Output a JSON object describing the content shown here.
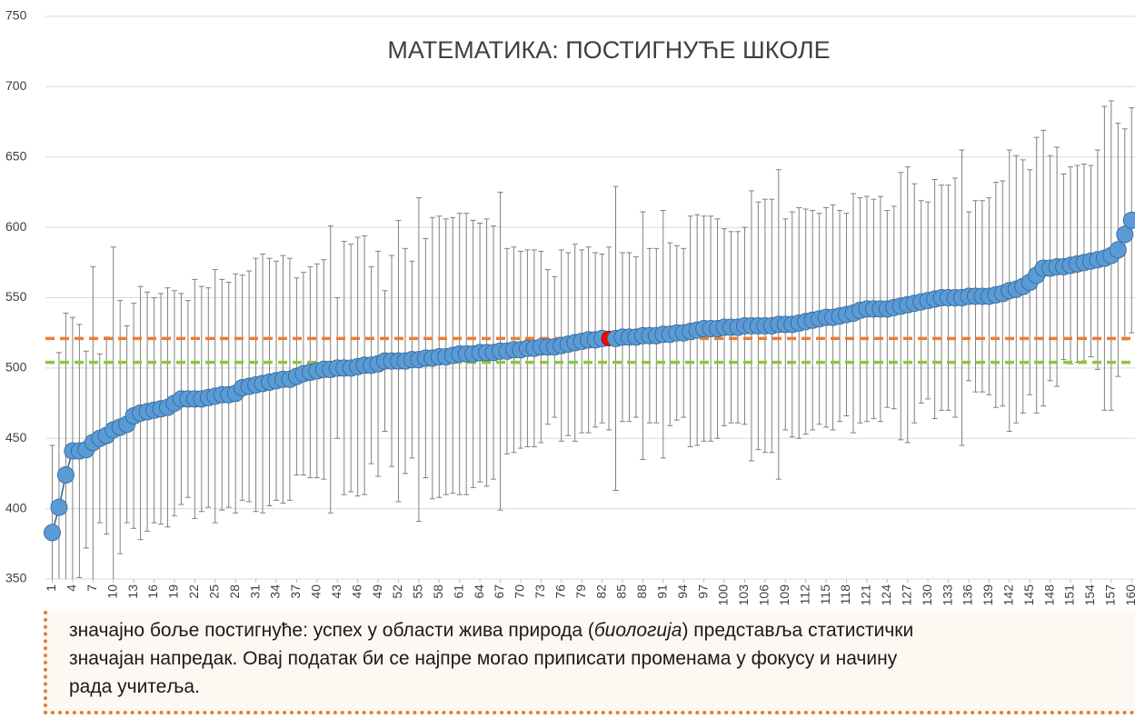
{
  "chart_data": {
    "type": "errorbar",
    "title": "МАТЕМАТИКА: ПОСТИГНУЋЕ ШКОЛЕ",
    "x": [
      1,
      2,
      3,
      4,
      5,
      6,
      7,
      8,
      9,
      10,
      11,
      12,
      13,
      14,
      15,
      16,
      17,
      18,
      19,
      20,
      21,
      22,
      23,
      24,
      25,
      26,
      27,
      28,
      29,
      30,
      31,
      32,
      33,
      34,
      35,
      36,
      37,
      38,
      39,
      40,
      41,
      42,
      43,
      44,
      45,
      46,
      47,
      48,
      49,
      50,
      51,
      52,
      53,
      54,
      55,
      56,
      57,
      58,
      59,
      60,
      61,
      62,
      63,
      64,
      65,
      66,
      67,
      68,
      69,
      70,
      71,
      72,
      73,
      74,
      75,
      76,
      77,
      78,
      79,
      80,
      81,
      82,
      83,
      84,
      85,
      86,
      87,
      88,
      89,
      90,
      91,
      92,
      93,
      94,
      95,
      96,
      97,
      98,
      99,
      100,
      101,
      102,
      103,
      104,
      105,
      106,
      107,
      108,
      109,
      110,
      111,
      112,
      113,
      114,
      115,
      116,
      117,
      118,
      119,
      120,
      121,
      122,
      123,
      124,
      125,
      126,
      127,
      128,
      129,
      130,
      131,
      132,
      133,
      134,
      135,
      136,
      137,
      138,
      139,
      140,
      141,
      142,
      143,
      144,
      145,
      146,
      147,
      148,
      149,
      150,
      151,
      152,
      153,
      154,
      155,
      156,
      157,
      158,
      159,
      160
    ],
    "series": [
      {
        "color": "#5b9bd5",
        "values": [
          383,
          401,
          424,
          441,
          441,
          442,
          447,
          450,
          452,
          456,
          458,
          460,
          466,
          468,
          469,
          470,
          471,
          472,
          475,
          478,
          478,
          478,
          478,
          479,
          480,
          481,
          481,
          482,
          486,
          487,
          488,
          489,
          490,
          491,
          492,
          492,
          494,
          496,
          497,
          498,
          499,
          499,
          500,
          500,
          500,
          501,
          502,
          502,
          503,
          505,
          505,
          505,
          505,
          506,
          506,
          507,
          507,
          508,
          508,
          509,
          510,
          510,
          510,
          511,
          511,
          511,
          512,
          512,
          513,
          513,
          514,
          514,
          515,
          515,
          515,
          516,
          517,
          518,
          519,
          520,
          520,
          521,
          521,
          521,
          522,
          522,
          522,
          523,
          523,
          523,
          524,
          524,
          525,
          525,
          526,
          527,
          528,
          528,
          528,
          529,
          529,
          529,
          530,
          530,
          530,
          530,
          530,
          531,
          531,
          531,
          532,
          533,
          534,
          535,
          536,
          536,
          537,
          538,
          539,
          541,
          542,
          542,
          542,
          542,
          543,
          544,
          545,
          546,
          547,
          548,
          549,
          550,
          550,
          550,
          550,
          551,
          551,
          551,
          551,
          552,
          553,
          555,
          556,
          558,
          561,
          566,
          571,
          571,
          572,
          572,
          573,
          574,
          575,
          576,
          577,
          578,
          580,
          584,
          595,
          605
        ],
        "errors": [
          62,
          110,
          115,
          95,
          90,
          70,
          125,
          60,
          70,
          130,
          90,
          70,
          80,
          90,
          85,
          80,
          82,
          85,
          80,
          75,
          70,
          85,
          80,
          78,
          90,
          82,
          80,
          85,
          80,
          82,
          90,
          92,
          88,
          85,
          88,
          86,
          70,
          72,
          75,
          76,
          78,
          102,
          50,
          90,
          88,
          92,
          92,
          70,
          80,
          50,
          75,
          100,
          80,
          70,
          115,
          85,
          100,
          100,
          98,
          98,
          100,
          100,
          95,
          92,
          95,
          90,
          113,
          73,
          73,
          70,
          70,
          70,
          68,
          55,
          50,
          68,
          65,
          70,
          65,
          66,
          62,
          60,
          65,
          108,
          60,
          60,
          57,
          88,
          62,
          62,
          88,
          65,
          62,
          60,
          82,
          82,
          80,
          80,
          78,
          70,
          68,
          68,
          70,
          96,
          88,
          90,
          90,
          110,
          75,
          80,
          82,
          80,
          78,
          75,
          78,
          80,
          75,
          72,
          85,
          80,
          80,
          78,
          80,
          70,
          72,
          95,
          98,
          85,
          72,
          70,
          85,
          80,
          80,
          85,
          105,
          60,
          68,
          68,
          70,
          80,
          80,
          100,
          95,
          90,
          80,
          98,
          98,
          80,
          85,
          66,
          70,
          70,
          70,
          68,
          78,
          108,
          110,
          90,
          75,
          80
        ]
      }
    ],
    "highlight": {
      "x": 83,
      "color": "#ff0000"
    },
    "reference_lines": [
      {
        "value": 521,
        "color": "#ed7d31"
      },
      {
        "value": 504,
        "color": "#8dc63f"
      }
    ],
    "xlim": [
      0,
      160.5
    ],
    "xticks": [
      1,
      4,
      7,
      10,
      13,
      16,
      19,
      22,
      25,
      28,
      31,
      34,
      37,
      40,
      43,
      46,
      49,
      52,
      55,
      58,
      61,
      64,
      67,
      70,
      73,
      76,
      79,
      82,
      85,
      88,
      91,
      94,
      97,
      100,
      103,
      106,
      109,
      112,
      115,
      118,
      121,
      124,
      127,
      130,
      133,
      136,
      139,
      142,
      145,
      148,
      151,
      154,
      157,
      160
    ],
    "ylim": [
      350,
      750
    ],
    "yticks": [
      350,
      400,
      450,
      500,
      550,
      600,
      650,
      700,
      750
    ],
    "grid": true
  },
  "note": {
    "lines": [
      [
        "значајно боље постигнуће: успех у области жива природа (",
        "биологија",
        ") представља статистички"
      ],
      [
        "значајан напредак. Овај податак би се најпре могао приписати променама у фокусу и начину"
      ],
      [
        "рада учитеља."
      ]
    ]
  }
}
